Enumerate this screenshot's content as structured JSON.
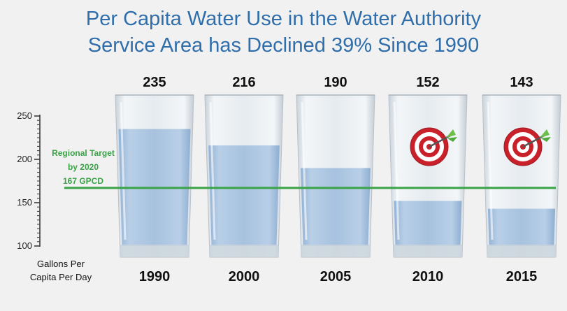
{
  "title_lines": [
    "Per Capita Water Use in the Water Authority",
    "Service Area has Declined 39% Since 1990"
  ],
  "chart_data": {
    "type": "bar",
    "title": "Per Capita Water Use in the Water Authority Service Area has Declined 39% Since 1990",
    "categories": [
      "1990",
      "2000",
      "2005",
      "2010",
      "2015"
    ],
    "values": [
      235,
      216,
      190,
      152,
      143
    ],
    "value_labels": [
      "235",
      "216",
      "190",
      "152",
      "143"
    ],
    "ylabel_lines": [
      "Gallons Per",
      "Capita Per Day"
    ],
    "ylim": [
      100,
      250
    ],
    "yticks": [
      100,
      150,
      200,
      250
    ],
    "ytick_labels": [
      "100",
      "150",
      "200",
      "250"
    ],
    "target": {
      "value": 167,
      "label_lines": [
        "Regional Target",
        "by 2020",
        "167 GPCD"
      ]
    },
    "target_icon_categories": [
      "2010",
      "2015"
    ],
    "colors": {
      "water": "#a9c4e0",
      "glass": "#dfe5ea",
      "target_line": "#3aa347",
      "title": "#2f6eaa"
    }
  }
}
